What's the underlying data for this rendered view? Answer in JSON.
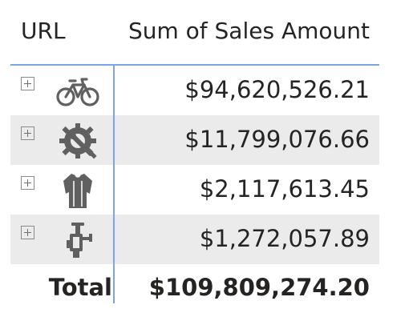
{
  "matrix": {
    "header": {
      "url": "URL",
      "sales": "Sum of Sales Amount"
    },
    "rows": [
      {
        "icon": "bike-icon",
        "value": "$94,620,526.21"
      },
      {
        "icon": "gear-crank-icon",
        "value": "$11,799,076.66"
      },
      {
        "icon": "jersey-icon",
        "value": "$2,117,613.45"
      },
      {
        "icon": "bike-stand-icon",
        "value": "$1,272,057.89"
      }
    ],
    "total": {
      "label": "Total",
      "value": "$109,809,274.20"
    },
    "colors": {
      "accent_border": "#7aa6e6",
      "row_shade": "#ebebeb",
      "icon_gray": "#606060"
    }
  }
}
